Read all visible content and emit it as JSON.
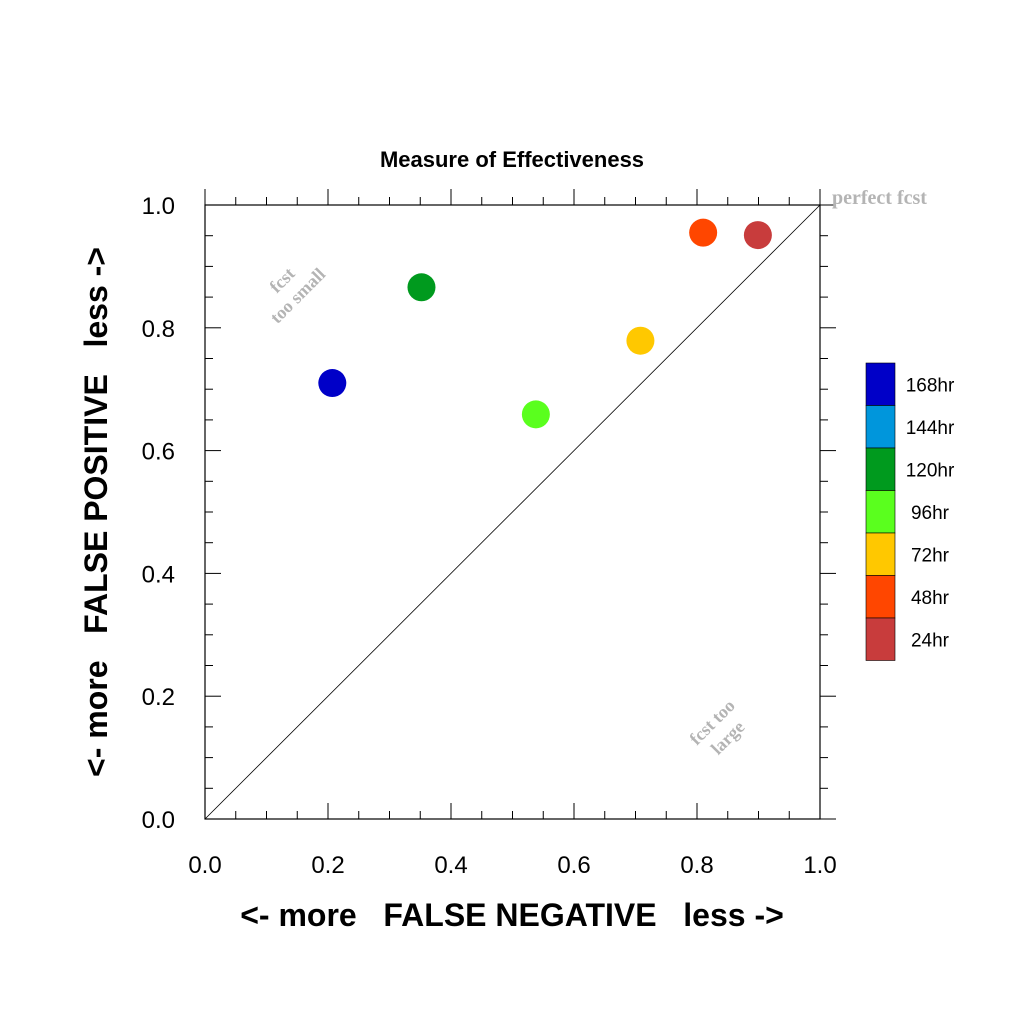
{
  "chart_data": {
    "type": "scatter",
    "title": "Measure of Effectiveness",
    "xlabel": "<- more   FALSE NEGATIVE   less ->",
    "ylabel": "<- more   FALSE POSITIVE   less ->",
    "xlim": [
      0.0,
      1.0
    ],
    "ylim": [
      0.0,
      1.0
    ],
    "xticks": [
      "0.0",
      "0.2",
      "0.4",
      "0.6",
      "0.8",
      "1.0"
    ],
    "yticks": [
      "0.0",
      "0.2",
      "0.4",
      "0.6",
      "0.8",
      "1.0"
    ],
    "grid": false,
    "diagonal_reference_line": true,
    "legend_position": "right",
    "points": [
      {
        "label": "168hr",
        "x": 0.207,
        "y": 0.71,
        "color": "#0000c8"
      },
      {
        "label": "120hr",
        "x": 0.352,
        "y": 0.866,
        "color": "#009a1e"
      },
      {
        "label": "96hr",
        "x": 0.538,
        "y": 0.659,
        "color": "#5aff1e"
      },
      {
        "label": "72hr",
        "x": 0.708,
        "y": 0.779,
        "color": "#ffc800"
      },
      {
        "label": "48hr",
        "x": 0.81,
        "y": 0.955,
        "color": "#ff4600"
      },
      {
        "label": "24hr",
        "x": 0.899,
        "y": 0.951,
        "color": "#c83c3c"
      }
    ],
    "legend": [
      {
        "label": "168hr",
        "color": "#0000c8"
      },
      {
        "label": "144hr",
        "color": "#0096dc"
      },
      {
        "label": "120hr",
        "color": "#009a1e"
      },
      {
        "label": "96hr",
        "color": "#5aff1e"
      },
      {
        "label": "72hr",
        "color": "#ffc800"
      },
      {
        "label": "48hr",
        "color": "#ff4600"
      },
      {
        "label": "24hr",
        "color": "#c83c3c"
      }
    ],
    "annotations": {
      "perfect": "perfect fcst",
      "too_small_1": "fcst",
      "too_small_2": "too small",
      "too_large_1": "fcst too",
      "too_large_2": "large"
    },
    "annotation_color": "#b4b4b4"
  }
}
